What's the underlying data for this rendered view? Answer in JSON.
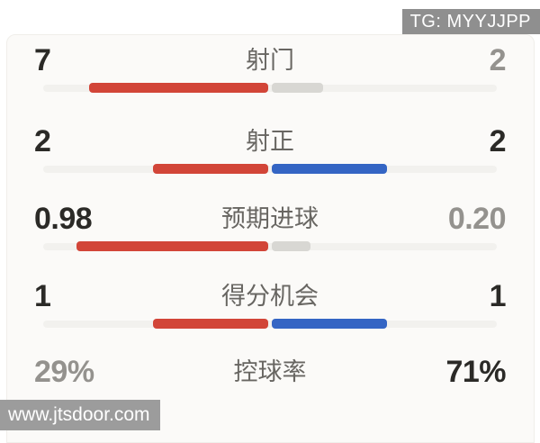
{
  "badge": {
    "label": "TG: MYYJJPP"
  },
  "watermark": {
    "label": "www.jtsdoor.com"
  },
  "colors": {
    "home_bar": "#d24538",
    "away_bar": "#3465c4",
    "losing_bar": "#d8d7d3",
    "track": "#f2f1ee",
    "value_strong": "#2b2a27",
    "value_muted": "#94928e",
    "label_text": "#686662",
    "badge_bg": "#8f8f8f",
    "watermark_bg": "#9c9c9c"
  },
  "chart_data": {
    "type": "bar",
    "orientation": "horizontal-paired",
    "home_color": "#d24538",
    "away_color": "#3465c4",
    "rows": [
      {
        "label": "射门",
        "home_value": "7",
        "away_value": "2",
        "home_emphasis": "strong",
        "away_emphasis": "muted",
        "bar": {
          "visible": true,
          "home_frac": 0.778,
          "away_frac": 0.222,
          "home_color": "#d24538",
          "away_color": "#d8d7d3"
        }
      },
      {
        "label": "射正",
        "home_value": "2",
        "away_value": "2",
        "home_emphasis": "strong",
        "away_emphasis": "strong",
        "bar": {
          "visible": true,
          "home_frac": 0.5,
          "away_frac": 0.5,
          "home_color": "#d24538",
          "away_color": "#3465c4"
        }
      },
      {
        "label": "预期进球",
        "home_value": "0.98",
        "away_value": "0.20",
        "home_emphasis": "strong",
        "away_emphasis": "muted",
        "bar": {
          "visible": true,
          "home_frac": 0.831,
          "away_frac": 0.169,
          "home_color": "#d24538",
          "away_color": "#d8d7d3"
        }
      },
      {
        "label": "得分机会",
        "home_value": "1",
        "away_value": "1",
        "home_emphasis": "strong",
        "away_emphasis": "strong",
        "bar": {
          "visible": true,
          "home_frac": 0.5,
          "away_frac": 0.5,
          "home_color": "#d24538",
          "away_color": "#3465c4"
        }
      },
      {
        "label": "控球率",
        "home_value": "29%",
        "away_value": "71%",
        "home_emphasis": "muted",
        "away_emphasis": "strong",
        "bar": {
          "visible": false,
          "home_frac": 0,
          "away_frac": 0,
          "home_color": "",
          "away_color": ""
        }
      }
    ]
  }
}
